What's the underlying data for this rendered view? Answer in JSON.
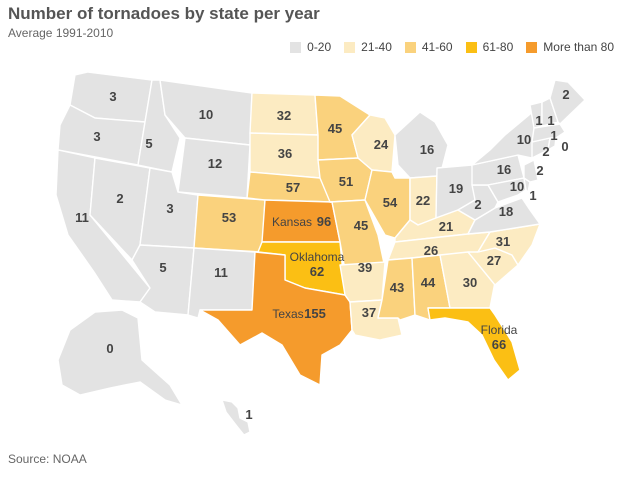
{
  "title": "Number of tornadoes by state per year",
  "subtitle": "Average 1991-2010",
  "source": "Source: NOAA",
  "colors": {
    "bin0": "#e3e3e3",
    "bin1": "#fcebc2",
    "bin2": "#fad27d",
    "bin3": "#fbbf14",
    "bin4": "#f59b2c"
  },
  "legend": [
    {
      "label": "0-20",
      "color": "#e3e3e3"
    },
    {
      "label": "21-40",
      "color": "#fcebc2"
    },
    {
      "label": "41-60",
      "color": "#fad27d"
    },
    {
      "label": "61-80",
      "color": "#fbbf14"
    },
    {
      "label": "More than 80",
      "color": "#f59b2c"
    }
  ],
  "states": [
    {
      "id": "WA",
      "value": "3"
    },
    {
      "id": "OR",
      "value": "3"
    },
    {
      "id": "CA",
      "value": "11"
    },
    {
      "id": "ID",
      "value": "5"
    },
    {
      "id": "NV",
      "value": "2"
    },
    {
      "id": "MT",
      "value": "10"
    },
    {
      "id": "WY",
      "value": "12"
    },
    {
      "id": "UT",
      "value": "3"
    },
    {
      "id": "AZ",
      "value": "5"
    },
    {
      "id": "CO",
      "value": "53"
    },
    {
      "id": "NM",
      "value": "11"
    },
    {
      "id": "ND",
      "value": "32"
    },
    {
      "id": "SD",
      "value": "36"
    },
    {
      "id": "NE",
      "value": "57"
    },
    {
      "id": "KS",
      "name": "Kansas",
      "value": "96"
    },
    {
      "id": "OK",
      "name": "Oklahoma",
      "value": "62"
    },
    {
      "id": "TX",
      "name": "Texas",
      "value": "155"
    },
    {
      "id": "MN",
      "value": "45"
    },
    {
      "id": "IA",
      "value": "51"
    },
    {
      "id": "MO",
      "value": "45"
    },
    {
      "id": "AR",
      "value": "39"
    },
    {
      "id": "LA",
      "value": "37"
    },
    {
      "id": "WI",
      "value": "24"
    },
    {
      "id": "IL",
      "value": "54"
    },
    {
      "id": "MI",
      "value": "16"
    },
    {
      "id": "IN",
      "value": "22"
    },
    {
      "id": "OH",
      "value": "19"
    },
    {
      "id": "KY",
      "value": "21"
    },
    {
      "id": "TN",
      "value": "26"
    },
    {
      "id": "MS",
      "value": "43"
    },
    {
      "id": "AL",
      "value": "44"
    },
    {
      "id": "GA",
      "value": "30"
    },
    {
      "id": "FL",
      "name": "Florida",
      "value": "66"
    },
    {
      "id": "SC",
      "value": "27"
    },
    {
      "id": "NC",
      "value": "31"
    },
    {
      "id": "VA",
      "value": "18"
    },
    {
      "id": "WV",
      "value": "2"
    },
    {
      "id": "PA",
      "value": "16"
    },
    {
      "id": "NY",
      "value": "10"
    },
    {
      "id": "MD",
      "value": "10"
    },
    {
      "id": "DE",
      "value": "1"
    },
    {
      "id": "NJ",
      "value": "2"
    },
    {
      "id": "CT",
      "value": "2"
    },
    {
      "id": "RI",
      "value": "0"
    },
    {
      "id": "MA",
      "value": "1"
    },
    {
      "id": "VT",
      "value": "1"
    },
    {
      "id": "NH",
      "value": "1"
    },
    {
      "id": "ME",
      "value": "2"
    },
    {
      "id": "AK",
      "value": "0"
    },
    {
      "id": "HI",
      "value": "1"
    }
  ]
}
